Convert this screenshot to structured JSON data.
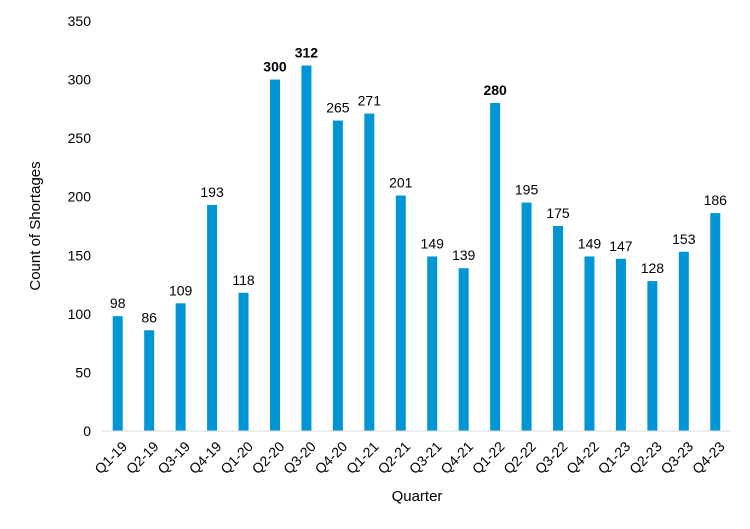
{
  "chart_data": {
    "type": "bar",
    "title": "",
    "xlabel": "Quarter",
    "ylabel": "Count of Shortages",
    "ylim": [
      0,
      350
    ],
    "yticks": [
      0,
      50,
      100,
      150,
      200,
      250,
      300,
      350
    ],
    "ytick_labels": [
      "0",
      "50",
      "100",
      "150",
      "200",
      "250",
      "300",
      "350"
    ],
    "grid": false,
    "legend": "none",
    "bar_color": "#0096D6",
    "categories": [
      "Q1-19",
      "Q2-19",
      "Q3-19",
      "Q4-19",
      "Q1-20",
      "Q2-20",
      "Q3-20",
      "Q4-20",
      "Q1-21",
      "Q2-21",
      "Q3-21",
      "Q4-21",
      "Q1-22",
      "Q2-22",
      "Q3-22",
      "Q4-22",
      "Q1-23",
      "Q2-23",
      "Q3-23",
      "Q4-23"
    ],
    "values": [
      98,
      86,
      109,
      193,
      118,
      300,
      312,
      265,
      271,
      201,
      149,
      139,
      280,
      195,
      175,
      149,
      147,
      128,
      153,
      186
    ],
    "value_labels": [
      "98",
      "86",
      "109",
      "193",
      "118",
      "300",
      "312",
      "265",
      "271",
      "201",
      "149",
      "139",
      "280",
      "195",
      "175",
      "149",
      "147",
      "128",
      "153",
      "186"
    ],
    "bold_labels": [
      "Q2-20",
      "Q3-20",
      "Q1-22"
    ]
  }
}
